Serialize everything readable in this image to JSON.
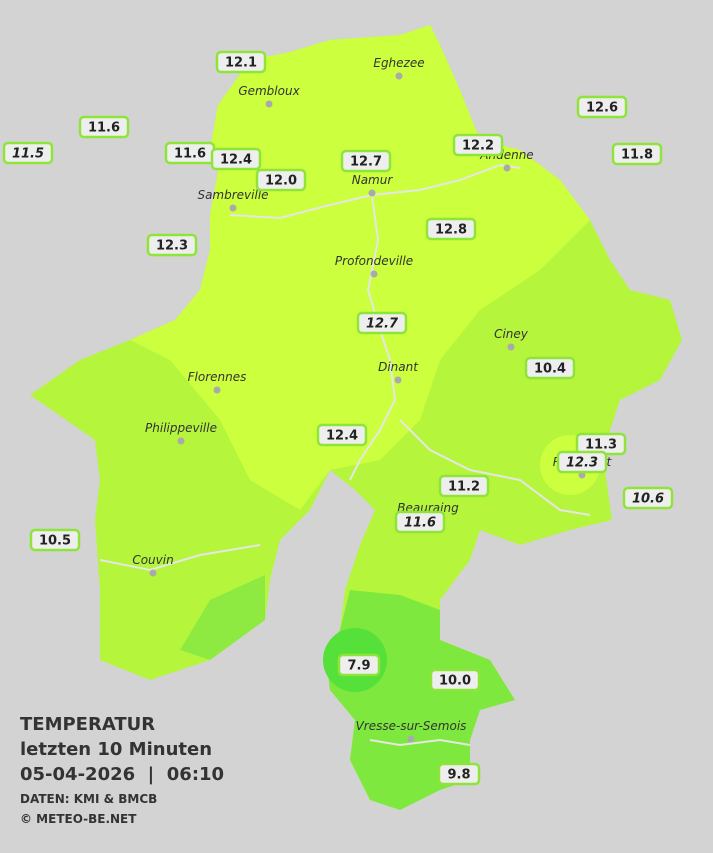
{
  "title": "TEMPERATUR",
  "subtitle": "letzten 10 Minuten",
  "datetime": "05-04-2026  |  06:10",
  "source": "DATEN: KMI & BMCB",
  "copyright": "© METEO-BE.NET",
  "cities": [
    "Eghezee",
    "Gembloux",
    "Andenne",
    "Namur",
    "Sambreville",
    "Profondeville",
    "Ciney",
    "Dinant",
    "Florennes",
    "Philippeville",
    "Rochefort",
    "Beauraing",
    "Couvin",
    "Vresse-sur-Semois"
  ],
  "stations": [
    {
      "value": "12.1",
      "italic": false
    },
    {
      "value": "11.6",
      "italic": false
    },
    {
      "value": "11.5",
      "italic": true
    },
    {
      "value": "11.6",
      "italic": false
    },
    {
      "value": "12.4",
      "italic": false
    },
    {
      "value": "12.0",
      "italic": false
    },
    {
      "value": "12.7",
      "italic": false
    },
    {
      "value": "12.2",
      "italic": false
    },
    {
      "value": "12.6",
      "italic": false
    },
    {
      "value": "11.8",
      "italic": false
    },
    {
      "value": "12.3",
      "italic": false
    },
    {
      "value": "12.8",
      "italic": false
    },
    {
      "value": "12.7",
      "italic": true
    },
    {
      "value": "10.4",
      "italic": false
    },
    {
      "value": "12.4",
      "italic": false
    },
    {
      "value": "11.3",
      "italic": false
    },
    {
      "value": "12.3",
      "italic": true
    },
    {
      "value": "10.6",
      "italic": true
    },
    {
      "value": "11.2",
      "italic": false
    },
    {
      "value": "11.6",
      "italic": true
    },
    {
      "value": "10.5",
      "italic": false
    },
    {
      "value": "7.9",
      "italic": false
    },
    {
      "value": "10.0",
      "italic": false
    },
    {
      "value": "9.8",
      "italic": false
    }
  ]
}
